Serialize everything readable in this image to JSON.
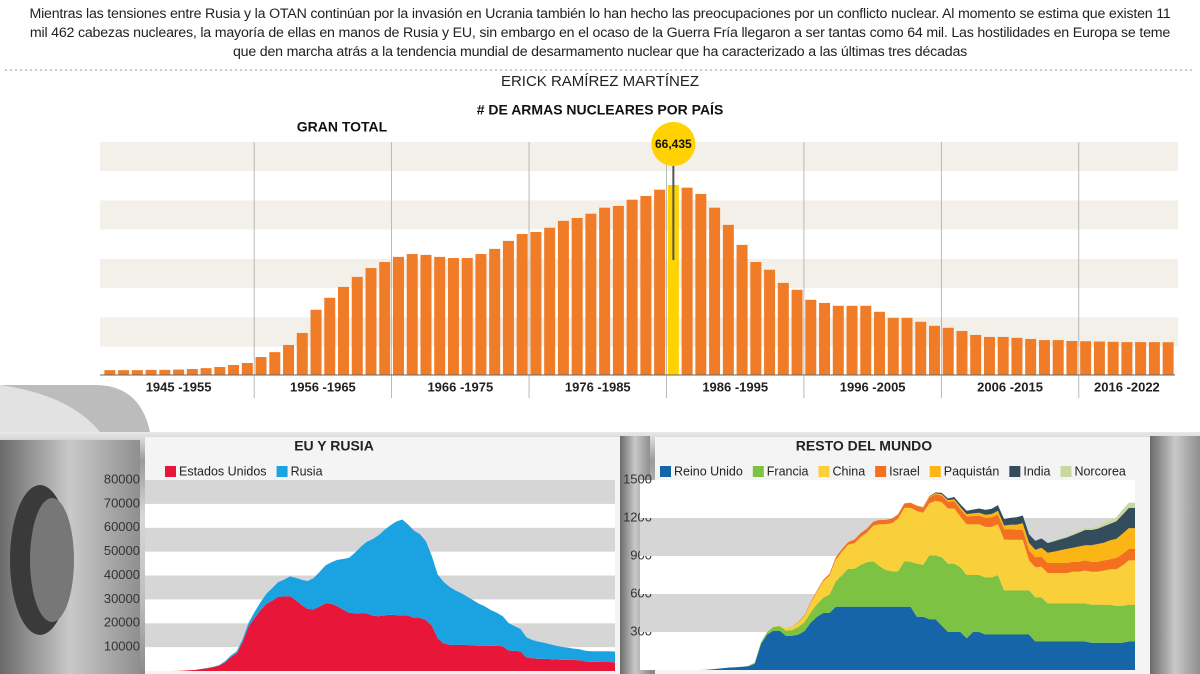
{
  "intro": "Mientras las tensiones entre Rusia y la OTAN continúan por la invasión en Ucrania también lo han hecho las preocupaciones por un conflicto nuclear. Al momento se estima que existen 11 mil 462 cabezas nucleares, la mayoría de ellas en manos de Rusia y EU, sin embargo en el ocaso de la Guerra Fría llegaron a ser tantas como 64 mil. Las hostilidades en Europa se teme que den marcha atrás a la tendencia mundial de desarmamento nuclear que ha caracterizado a las últimas tres décadas",
  "author": "ERICK RAMÍREZ MARTÍNEZ",
  "title": "# DE ARMAS NUCLEARES POR PAÍS",
  "chart_data": [
    {
      "type": "bar",
      "title": "GRAN TOTAL",
      "color": "#f07c28",
      "highlight_color": "#ffd200",
      "groups": [
        {
          "label": "1945 -1955",
          "values": [
            1700,
            1700,
            1700,
            1800,
            1800,
            1900,
            2100,
            2400,
            2800,
            3500,
            4200
          ]
        },
        {
          "label": "1956 -1965",
          "values": [
            6300,
            8000,
            10500,
            14700,
            22800,
            27000,
            30800,
            34300,
            37400,
            39500
          ]
        },
        {
          "label": "1966 -1975",
          "values": [
            41300,
            42300,
            42000,
            41300,
            40900,
            40900,
            42300,
            44100,
            46900,
            49300
          ]
        },
        {
          "label": "1976 -1985",
          "values": [
            50000,
            51500,
            53900,
            54900,
            56400,
            58500,
            59100,
            61300,
            62600,
            64800
          ]
        },
        {
          "label": "1986 -1995",
          "values": [
            66435,
            65500,
            63300,
            58500,
            52500,
            45500,
            39500,
            36800,
            32200,
            29800
          ],
          "value_labels": [
            "66,435",
            null,
            null,
            null,
            null,
            null,
            null,
            null,
            null,
            null
          ]
        },
        {
          "label": "1996 -2005",
          "values": [
            26300,
            25200,
            24200,
            24200,
            24200,
            22100,
            20000,
            20000,
            18600,
            17200
          ]
        },
        {
          "label": "2006 -2015",
          "values": [
            16500,
            15400,
            14000,
            13300,
            13300,
            13000,
            12600,
            12200,
            12200,
            11900
          ]
        },
        {
          "label": "2016 -2022",
          "values": [
            11800,
            11700,
            11600,
            11500,
            11500,
            11500,
            11462
          ]
        }
      ]
    },
    {
      "type": "area",
      "stacked": true,
      "title": "EU Y RUSIA",
      "ylim": [
        0,
        80000
      ],
      "yticks": [
        10000,
        20000,
        30000,
        40000,
        50000,
        60000,
        70000,
        80000
      ],
      "grid": true,
      "series": [
        {
          "name": "Estados Unidos",
          "color": "#e8173a",
          "values": [
            2,
            9,
            13,
            50,
            170,
            300,
            440,
            840,
            1170,
            1630,
            2280,
            3620,
            5830,
            7400,
            12300,
            18600,
            22200,
            25500,
            28100,
            29500,
            31100,
            31200,
            31300,
            29600,
            27600,
            26000,
            25800,
            27000,
            28300,
            28200,
            27100,
            25700,
            24400,
            24200,
            24100,
            24100,
            23200,
            22900,
            23300,
            23600,
            23400,
            23300,
            23200,
            22200,
            22200,
            21400,
            19000,
            13700,
            11500,
            11000,
            10900,
            11000,
            10900,
            10700,
            10600,
            10600,
            10500,
            10600,
            10300,
            8600,
            8400,
            8200,
            5700,
            5300,
            5100,
            5100,
            5000,
            4800,
            4700,
            4700,
            4600,
            4500,
            4000,
            3800,
            3800,
            3750,
            3750,
            3700
          ]
        },
        {
          "name": "Rusia",
          "color": "#1aa3e0",
          "values": [
            0,
            0,
            0,
            0,
            1,
            5,
            25,
            50,
            120,
            150,
            200,
            426,
            660,
            869,
            1060,
            1605,
            2471,
            3322,
            4238,
            5221,
            6129,
            7089,
            8339,
            9399,
            10538,
            11643,
            13092,
            14478,
            15915,
            17385,
            19443,
            21205,
            23044,
            25393,
            27935,
            30062,
            32049,
            33952,
            35804,
            37431,
            39197,
            40159,
            38107,
            36538,
            35078,
            32980,
            29154,
            26734,
            25840,
            24206,
            22800,
            21600,
            20200,
            18900,
            17600,
            16400,
            15000,
            13800,
            12600,
            11500,
            10400,
            9400,
            8400,
            7700,
            7200,
            6700,
            6200,
            5800,
            5400,
            5100,
            4800,
            4600,
            4500,
            4500,
            4500,
            4500,
            4500,
            4477
          ]
        }
      ]
    },
    {
      "type": "area",
      "stacked": true,
      "title": "RESTO DEL MUNDO",
      "ylim": [
        0,
        1500
      ],
      "yticks": [
        300,
        600,
        900,
        1200,
        1500
      ],
      "grid": true,
      "series": [
        {
          "name": "Reino Unido",
          "color": "#1565a8",
          "values": [
            0,
            0,
            0,
            0,
            0,
            0,
            0,
            0,
            1,
            5,
            10,
            15,
            20,
            22,
            25,
            30,
            50,
            205,
            280,
            310,
            310,
            270,
            270,
            280,
            308,
            375,
            420,
            450,
            450,
            500,
            500,
            500,
            500,
            500,
            500,
            500,
            500,
            500,
            500,
            500,
            500,
            500,
            420,
            420,
            400,
            400,
            350,
            300,
            300,
            300,
            250,
            300,
            300,
            280,
            280,
            280,
            280,
            280,
            280,
            280,
            280,
            225,
            225,
            225,
            225,
            225,
            225,
            225,
            225,
            225,
            215,
            215,
            215,
            215,
            215,
            215,
            225,
            225
          ]
        },
        {
          "name": "Francia",
          "color": "#7dc242",
          "values": [
            0,
            0,
            0,
            0,
            0,
            0,
            0,
            0,
            0,
            0,
            0,
            0,
            0,
            0,
            0,
            4,
            8,
            14,
            20,
            30,
            35,
            40,
            45,
            60,
            70,
            80,
            100,
            120,
            145,
            200,
            250,
            300,
            300,
            330,
            350,
            360,
            320,
            290,
            280,
            280,
            360,
            355,
            420,
            410,
            505,
            505,
            540,
            540,
            540,
            510,
            500,
            450,
            450,
            450,
            450,
            470,
            350,
            348,
            348,
            348,
            350,
            350,
            350,
            300,
            300,
            300,
            300,
            300,
            300,
            300,
            300,
            300,
            300,
            300,
            290,
            290,
            290,
            290
          ]
        },
        {
          "name": "China",
          "color": "#f9cf3a",
          "values": [
            0,
            0,
            0,
            0,
            0,
            0,
            0,
            0,
            0,
            0,
            0,
            0,
            0,
            0,
            0,
            0,
            0,
            0,
            0,
            1,
            5,
            20,
            25,
            35,
            50,
            75,
            100,
            130,
            150,
            170,
            185,
            190,
            200,
            220,
            235,
            280,
            330,
            360,
            380,
            415,
            420,
            425,
            415,
            410,
            410,
            430,
            435,
            435,
            435,
            400,
            400,
            400,
            400,
            400,
            400,
            400,
            400,
            400,
            400,
            400,
            235,
            235,
            240,
            240,
            240,
            240,
            240,
            250,
            250,
            260,
            260,
            260,
            270,
            280,
            290,
            320,
            350,
            350
          ]
        },
        {
          "name": "Israel",
          "color": "#f37021",
          "values": [
            0,
            0,
            0,
            0,
            0,
            0,
            0,
            0,
            0,
            0,
            0,
            0,
            0,
            0,
            0,
            0,
            0,
            0,
            0,
            0,
            0,
            0,
            2,
            4,
            6,
            8,
            10,
            13,
            15,
            20,
            20,
            20,
            31,
            31,
            31,
            31,
            35,
            35,
            35,
            35,
            35,
            41,
            41,
            41,
            47,
            53,
            53,
            53,
            59,
            59,
            63,
            66,
            69,
            72,
            75,
            78,
            81,
            84,
            80,
            80,
            80,
            80,
            80,
            80,
            80,
            80,
            80,
            80,
            80,
            80,
            80,
            80,
            80,
            80,
            90,
            90,
            90,
            90
          ]
        },
        {
          "name": "Paquistán",
          "color": "#fbb615",
          "values": [
            0,
            0,
            0,
            0,
            0,
            0,
            0,
            0,
            0,
            0,
            0,
            0,
            0,
            0,
            0,
            0,
            0,
            0,
            0,
            0,
            0,
            0,
            0,
            0,
            0,
            0,
            0,
            0,
            0,
            0,
            0,
            0,
            0,
            0,
            0,
            0,
            0,
            0,
            0,
            0,
            0,
            1,
            3,
            4,
            6,
            8,
            10,
            12,
            14,
            16,
            18,
            20,
            22,
            24,
            26,
            28,
            30,
            35,
            40,
            50,
            60,
            60,
            70,
            80,
            90,
            100,
            110,
            110,
            120,
            120,
            130,
            140,
            140,
            150,
            150,
            160,
            165,
            165
          ]
        },
        {
          "name": "India",
          "color": "#334d5c",
          "values": [
            0,
            0,
            0,
            0,
            0,
            0,
            0,
            0,
            0,
            0,
            0,
            0,
            0,
            0,
            0,
            0,
            0,
            0,
            0,
            0,
            0,
            0,
            0,
            0,
            0,
            0,
            0,
            0,
            0,
            0,
            0,
            0,
            0,
            0,
            0,
            0,
            0,
            0,
            0,
            0,
            0,
            0,
            0,
            2,
            4,
            6,
            10,
            14,
            18,
            22,
            26,
            30,
            34,
            38,
            42,
            46,
            50,
            54,
            58,
            62,
            66,
            70,
            74,
            78,
            82,
            86,
            90,
            100,
            110,
            120,
            120,
            120,
            130,
            130,
            140,
            150,
            160,
            160
          ]
        },
        {
          "name": "Norcorea",
          "color": "#c8d8a0",
          "values": [
            0,
            0,
            0,
            0,
            0,
            0,
            0,
            0,
            0,
            0,
            0,
            0,
            0,
            0,
            0,
            0,
            0,
            0,
            0,
            0,
            0,
            0,
            0,
            0,
            0,
            0,
            0,
            0,
            0,
            0,
            0,
            0,
            0,
            0,
            0,
            0,
            0,
            0,
            0,
            0,
            0,
            0,
            0,
            0,
            0,
            0,
            0,
            0,
            0,
            0,
            0,
            0,
            0,
            0,
            0,
            0,
            0,
            0,
            0,
            0,
            0,
            2,
            2,
            2,
            5,
            8,
            10,
            12,
            12,
            15,
            15,
            20,
            25,
            30,
            30,
            40,
            40,
            40
          ]
        }
      ]
    }
  ]
}
